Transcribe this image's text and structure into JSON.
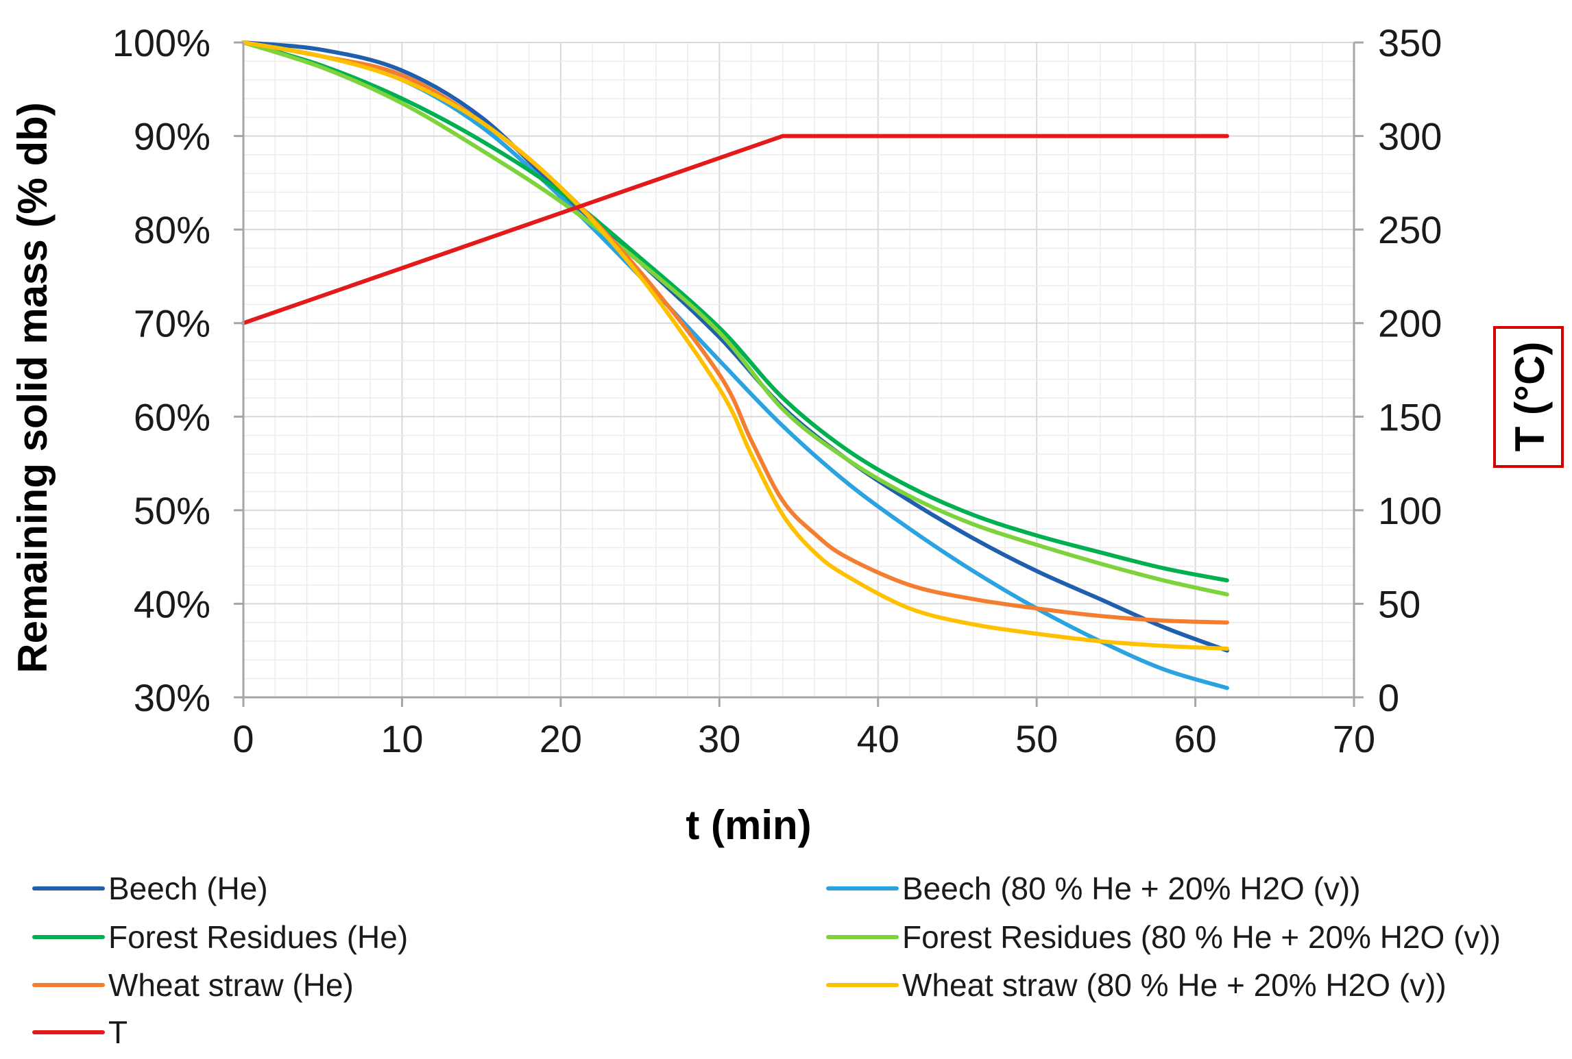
{
  "chart_data": {
    "type": "line",
    "title": "",
    "xlabel": "t (min)",
    "ylabel": "Remaining solid mass (% db)",
    "y2label": "T (°C)",
    "xlim": [
      0,
      70
    ],
    "ylim": [
      30,
      100
    ],
    "y2lim": [
      0,
      350
    ],
    "x_ticks": [
      "0",
      "10",
      "20",
      "30",
      "40",
      "50",
      "60",
      "70"
    ],
    "y_ticks": [
      "30%",
      "40%",
      "50%",
      "60%",
      "70%",
      "80%",
      "90%",
      "100%"
    ],
    "y2_ticks": [
      "0",
      "50",
      "100",
      "150",
      "200",
      "250",
      "300",
      "350"
    ],
    "grid": true,
    "legend_position": "bottom",
    "series": [
      {
        "name": "Beech (He)",
        "axis": "left",
        "color": "#1f5fad",
        "x": [
          0,
          5,
          10,
          15,
          20,
          25,
          30,
          34,
          38,
          42,
          46,
          50,
          54,
          58,
          62
        ],
        "y": [
          100,
          99.2,
          97,
          92,
          84,
          76.5,
          68.5,
          61,
          55.5,
          51,
          47,
          43.5,
          40.5,
          37.5,
          35
        ]
      },
      {
        "name": "Beech (80 % He + 20% H2O (v))",
        "axis": "left",
        "color": "#2ba3e0",
        "x": [
          0,
          5,
          10,
          15,
          20,
          25,
          30,
          34,
          38,
          42,
          46,
          50,
          54,
          58,
          62
        ],
        "y": [
          100,
          98.5,
          96,
          91,
          83.5,
          75,
          66,
          59,
          53,
          48,
          43.5,
          39.5,
          36,
          33,
          31
        ]
      },
      {
        "name": "Forest Residues (He)",
        "axis": "left",
        "color": "#00b050",
        "x": [
          0,
          5,
          10,
          15,
          20,
          25,
          30,
          34,
          38,
          42,
          46,
          50,
          54,
          58,
          62
        ],
        "y": [
          100,
          97.5,
          94,
          89.5,
          84,
          77,
          69.5,
          62,
          56.5,
          52.5,
          49.5,
          47.3,
          45.5,
          43.8,
          42.5
        ]
      },
      {
        "name": "Forest Residues (80 % He + 20% H2O (v))",
        "axis": "left",
        "color": "#7ed33c",
        "x": [
          0,
          5,
          10,
          15,
          20,
          25,
          30,
          34,
          38,
          42,
          46,
          50,
          54,
          58,
          62
        ],
        "y": [
          100,
          97.3,
          93.5,
          88.5,
          83,
          76.5,
          69,
          60.8,
          55.5,
          51.5,
          48.5,
          46.3,
          44.3,
          42.5,
          41
        ]
      },
      {
        "name": "Wheat straw (He)",
        "axis": "left",
        "color": "#f47d30",
        "x": [
          0,
          5,
          10,
          15,
          20,
          25,
          30,
          32,
          34,
          36,
          38,
          42,
          46,
          50,
          54,
          58,
          62
        ],
        "y": [
          100,
          98.5,
          96.5,
          91.5,
          84.5,
          75.5,
          64.5,
          57.5,
          51,
          47.5,
          45,
          42,
          40.5,
          39.5,
          38.7,
          38.2,
          38
        ]
      },
      {
        "name": "Wheat straw (80 % He + 20% H2O (v))",
        "axis": "left",
        "color": "#ffc000",
        "x": [
          0,
          5,
          10,
          15,
          20,
          25,
          30,
          32,
          34,
          36,
          38,
          42,
          46,
          50,
          54,
          58,
          62
        ],
        "y": [
          100,
          98.5,
          96,
          91.5,
          84.5,
          75,
          63,
          56,
          49.5,
          45.5,
          43,
          39.5,
          37.8,
          36.8,
          36,
          35.5,
          35.2
        ]
      },
      {
        "name": "T",
        "axis": "right",
        "color": "#e31a1c",
        "x": [
          0,
          34,
          62
        ],
        "y": [
          200,
          300,
          300
        ]
      }
    ]
  },
  "legend": {
    "items": [
      {
        "label": "Beech (He)",
        "color": "#1f5fad"
      },
      {
        "label": "Beech (80 % He + 20% H2O (v))",
        "color": "#2ba3e0"
      },
      {
        "label": "Forest Residues (He)",
        "color": "#00b050"
      },
      {
        "label": "Forest Residues (80 % He + 20% H2O (v))",
        "color": "#7ed33c"
      },
      {
        "label": "Wheat straw (He)",
        "color": "#f47d30"
      },
      {
        "label": "Wheat straw (80 % He + 20% H2O (v))",
        "color": "#ffc000"
      },
      {
        "label": "T",
        "color": "#e31a1c"
      }
    ]
  },
  "y2label_box_color": "#d40000"
}
